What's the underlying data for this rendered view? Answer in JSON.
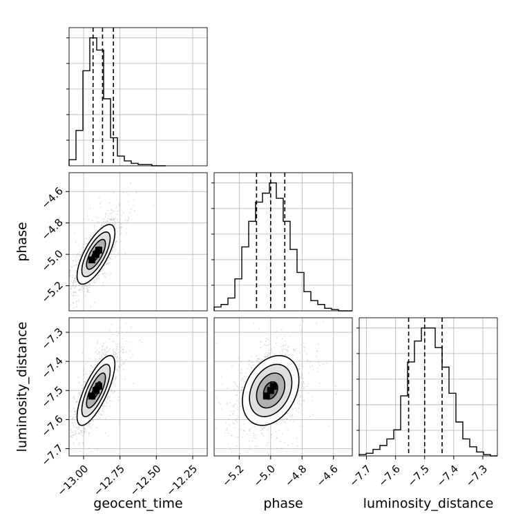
{
  "chart_data": {
    "type": "corner",
    "parameters": [
      "geocent_time",
      "phase",
      "luminosity_distance"
    ],
    "axis_labels": {
      "x": [
        "geocent_time",
        "phase",
        "luminosity_distance"
      ],
      "y": [
        "phase",
        "luminosity_distance"
      ]
    },
    "ranges": {
      "geocent_time": [
        -13.1,
        -12.15
      ],
      "phase": [
        -5.36,
        -4.48
      ],
      "luminosity_distance": [
        -7.725,
        -7.25
      ]
    },
    "ticks": {
      "geocent_time": [
        -13.0,
        -12.75,
        -12.5,
        -12.25
      ],
      "phase": [
        -5.2,
        -5.0,
        -4.8,
        -4.6
      ],
      "luminosity_distance": [
        -7.7,
        -7.6,
        -7.5,
        -7.4,
        -7.3
      ]
    },
    "tick_labels": {
      "geocent_time": [
        "−13.00",
        "−12.75",
        "−12.50",
        "−12.25"
      ],
      "phase": [
        "−5.2",
        "−5.0",
        "−4.8",
        "−4.6"
      ],
      "luminosity_distance": [
        "−7.7",
        "−7.6",
        "−7.5",
        "−7.4",
        "−7.3"
      ]
    },
    "quantiles": {
      "geocent_time": [
        -12.935,
        -12.87,
        -12.795
      ],
      "phase": [
        -5.09,
        -5.0,
        -4.91
      ],
      "luminosity_distance": [
        -7.555,
        -7.5,
        -7.44
      ]
    },
    "histograms": {
      "geocent_time": {
        "edges": [
          -13.1,
          -13.0525,
          -13.005,
          -12.9575,
          -12.91,
          -12.8625,
          -12.815,
          -12.7675,
          -12.72,
          -12.6725,
          -12.625,
          -12.5775,
          -12.53,
          -12.4825,
          -12.435
        ],
        "counts": [
          5,
          29,
          78,
          105,
          95,
          55,
          23,
          8,
          4,
          2,
          1,
          1,
          0,
          0
        ]
      },
      "phase": {
        "edges": [
          -5.36,
          -5.316,
          -5.272,
          -5.228,
          -5.184,
          -5.14,
          -5.096,
          -5.052,
          -5.008,
          -4.964,
          -4.92,
          -4.876,
          -4.832,
          -4.788,
          -4.744,
          -4.7,
          -4.656,
          -4.612,
          -4.568,
          -4.524,
          -4.48
        ],
        "counts": [
          3,
          5,
          10,
          25,
          50,
          70,
          85,
          92,
          100,
          88,
          70,
          48,
          30,
          15,
          8,
          5,
          2,
          1,
          0,
          0
        ]
      },
      "luminosity_distance": {
        "edges": [
          -7.725,
          -7.7012,
          -7.6775,
          -7.6538,
          -7.63,
          -7.6062,
          -7.5825,
          -7.5588,
          -7.535,
          -7.5112,
          -7.4875,
          -7.4637,
          -7.44,
          -7.4163,
          -7.3925,
          -7.3688,
          -7.345,
          -7.3213,
          -7.2975,
          -7.2737,
          -7.25
        ],
        "counts": [
          1,
          2,
          5,
          8,
          13,
          20,
          46,
          72,
          88,
          98,
          98,
          83,
          68,
          48,
          26,
          13,
          7,
          3,
          1,
          0
        ]
      }
    },
    "contour_panels": [
      {
        "x": "geocent_time",
        "y": "phase",
        "center": [
          -12.915,
          -5.0
        ],
        "sigma": [
          0.065,
          0.095
        ],
        "rho": 0.72,
        "levels_sigma": [
          0.5,
          1.0,
          1.5,
          2.0
        ]
      },
      {
        "x": "geocent_time",
        "y": "luminosity_distance",
        "center": [
          -12.915,
          -7.5
        ],
        "sigma": [
          0.065,
          0.06
        ],
        "rho": 0.75,
        "levels_sigma": [
          0.5,
          1.0,
          1.5,
          2.0
        ]
      },
      {
        "x": "phase",
        "y": "luminosity_distance",
        "center": [
          -5.0,
          -7.5
        ],
        "sigma": [
          0.09,
          0.06
        ],
        "rho": 0.3,
        "levels_sigma": [
          0.5,
          1.0,
          1.5,
          2.0
        ]
      }
    ],
    "grid": true,
    "colors": {
      "line": "#000000",
      "samples": "#9a9a9a",
      "grid": "#b0b0b0"
    }
  }
}
